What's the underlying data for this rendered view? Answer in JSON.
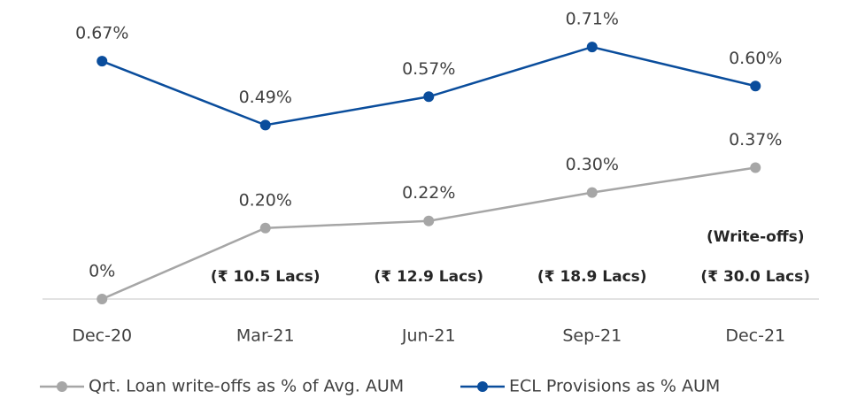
{
  "chart_data": {
    "type": "line",
    "categories": [
      "Dec-20",
      "Mar-21",
      "Jun-21",
      "Sep-21",
      "Dec-21"
    ],
    "series": [
      {
        "name": "Qrt. Loan write-offs as % of Avg. AUM",
        "color": "#a6a6a6",
        "values": [
          0,
          0.2,
          0.22,
          0.3,
          0.37
        ],
        "value_labels": [
          "0%",
          "0.20%",
          "0.22%",
          "0.30%",
          "0.37%"
        ]
      },
      {
        "name": "ECL Provisions as % AUM",
        "color": "#0a4d9c",
        "values": [
          0.67,
          0.49,
          0.57,
          0.71,
          0.6
        ],
        "value_labels": [
          "0.67%",
          "0.49%",
          "0.57%",
          "0.71%",
          "0.60%"
        ]
      }
    ],
    "write_off_header": "(Write-offs)",
    "write_off_amounts": [
      null,
      "(₹ 10.5 Lacs)",
      "(₹ 12.9 Lacs)",
      "(₹ 18.9 Lacs)",
      "(₹ 30.0 Lacs)"
    ],
    "ylim": [
      0,
      0.8
    ]
  }
}
